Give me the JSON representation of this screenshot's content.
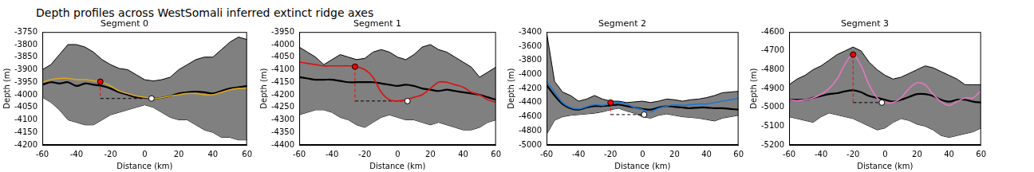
{
  "title": "Depth profiles across WestSomali inferred extinct ridge axes",
  "chart_data": [
    {
      "type": "line",
      "title": "Segment 0",
      "x_label": "Distance (km)",
      "y_label": "Depth (m)",
      "x": [
        -60,
        -55,
        -50,
        -45,
        -40,
        -35,
        -30,
        -25,
        -20,
        -15,
        -10,
        -5,
        0,
        5,
        10,
        15,
        20,
        25,
        30,
        35,
        40,
        45,
        50,
        55,
        60
      ],
      "xlim": [
        -60,
        60
      ],
      "xticks": [
        -60,
        -40,
        -20,
        0,
        20,
        40,
        60
      ],
      "ylim": [
        -4200,
        -3750
      ],
      "yticks": [
        -4200,
        -4150,
        -4100,
        -4050,
        -4000,
        -3950,
        -3900,
        -3850,
        -3800,
        -3750
      ],
      "grid": false,
      "series": [
        {
          "type": "band",
          "color": "#808080",
          "upper": [
            -3900,
            -3880,
            -3840,
            -3800,
            -3800,
            -3810,
            -3830,
            -3860,
            -3880,
            -3895,
            -3900,
            -3920,
            -3940,
            -3945,
            -3940,
            -3930,
            -3900,
            -3880,
            -3860,
            -3850,
            -3850,
            -3820,
            -3790,
            -3770,
            -3780
          ],
          "lower": [
            -4010,
            -4030,
            -4060,
            -4100,
            -4110,
            -4120,
            -4120,
            -4100,
            -4080,
            -4070,
            -4060,
            -4050,
            -4040,
            -4050,
            -4070,
            -4090,
            -4100,
            -4100,
            -4120,
            -4140,
            -4150,
            -4170,
            -4170,
            -4180,
            -4180
          ]
        },
        {
          "color": "#000000",
          "values": [
            -3960,
            -3950,
            -3955,
            -3950,
            -3965,
            -3955,
            -3960,
            -3965,
            -3975,
            -3990,
            -4000,
            -4010,
            -4012,
            -4015,
            -4012,
            -4005,
            -3995,
            -3990,
            -3988,
            -3990,
            -3995,
            -3985,
            -3975,
            -3970,
            -3965
          ]
        },
        {
          "color": "#daa520",
          "values": [
            -3950,
            -3940,
            -3935,
            -3935,
            -3940,
            -3940,
            -3945,
            -3950,
            -3965,
            -3985,
            -3995,
            -4005,
            -4010,
            -4015,
            -4012,
            -4005,
            -4000,
            -3995,
            -3995,
            -4000,
            -4000,
            -3990,
            -3980,
            -3975,
            -3975
          ]
        },
        {
          "color": "#ff0000",
          "line_style": "dashed",
          "x": [
            -26,
            -26
          ],
          "values": [
            -3948,
            -4015
          ]
        },
        {
          "color": "#000000",
          "line_style": "dashed",
          "x": [
            -26,
            4
          ],
          "values": [
            -4015,
            -4015
          ]
        },
        {
          "type": "scatter",
          "color": "#ff0000",
          "marker": "circle",
          "x": [
            -26
          ],
          "values": [
            -3948
          ]
        },
        {
          "type": "scatter",
          "color": "#ffffff",
          "marker": "circle",
          "x": [
            4
          ],
          "values": [
            -4015
          ]
        }
      ]
    },
    {
      "type": "line",
      "title": "Segment 1",
      "x_label": "Distance (km)",
      "y_label": "Depth (m)",
      "x": [
        -60,
        -55,
        -50,
        -45,
        -40,
        -35,
        -30,
        -25,
        -20,
        -15,
        -10,
        -5,
        0,
        5,
        10,
        15,
        20,
        25,
        30,
        35,
        40,
        45,
        50,
        55,
        60
      ],
      "xlim": [
        -60,
        60
      ],
      "xticks": [
        -60,
        -40,
        -20,
        0,
        20,
        40,
        60
      ],
      "ylim": [
        -4400,
        -3950
      ],
      "yticks": [
        -4400,
        -4350,
        -4300,
        -4250,
        -4200,
        -4150,
        -4100,
        -4050,
        -4000,
        -3950
      ],
      "grid": false,
      "series": [
        {
          "type": "band",
          "color": "#808080",
          "upper": [
            -4010,
            -4030,
            -4050,
            -4080,
            -4060,
            -4040,
            -4050,
            -4060,
            -4055,
            -4030,
            -4020,
            -4030,
            -4050,
            -4060,
            -4040,
            -4010,
            -4000,
            -4020,
            -4030,
            -4050,
            -4070,
            -4090,
            -4130,
            -4110,
            -4090
          ],
          "lower": [
            -4280,
            -4270,
            -4260,
            -4260,
            -4270,
            -4290,
            -4300,
            -4320,
            -4330,
            -4310,
            -4290,
            -4280,
            -4290,
            -4300,
            -4300,
            -4310,
            -4320,
            -4310,
            -4320,
            -4330,
            -4340,
            -4340,
            -4330,
            -4310,
            -4300
          ]
        },
        {
          "color": "#000000",
          "values": [
            -4130,
            -4135,
            -4140,
            -4140,
            -4140,
            -4145,
            -4150,
            -4150,
            -4150,
            -4150,
            -4155,
            -4160,
            -4165,
            -4160,
            -4165,
            -4175,
            -4180,
            -4185,
            -4180,
            -4185,
            -4190,
            -4195,
            -4200,
            -4210,
            -4220
          ]
        },
        {
          "color": "#dd1111",
          "values": [
            -4070,
            -4075,
            -4080,
            -4085,
            -4085,
            -4085,
            -4085,
            -4088,
            -4100,
            -4130,
            -4190,
            -4220,
            -4225,
            -4220,
            -4210,
            -4200,
            -4175,
            -4150,
            -4150,
            -4160,
            -4170,
            -4190,
            -4200,
            -4220,
            -4230
          ]
        },
        {
          "color": "#ff0000",
          "line_style": "dashed",
          "x": [
            -26,
            -26
          ],
          "values": [
            -4088,
            -4225
          ]
        },
        {
          "color": "#000000",
          "line_style": "dashed",
          "x": [
            -26,
            6
          ],
          "values": [
            -4225,
            -4225
          ]
        },
        {
          "type": "scatter",
          "color": "#ff0000",
          "marker": "circle",
          "x": [
            -26
          ],
          "values": [
            -4088
          ]
        },
        {
          "type": "scatter",
          "color": "#ffffff",
          "marker": "circle",
          "x": [
            6
          ],
          "values": [
            -4225
          ]
        }
      ]
    },
    {
      "type": "line",
      "title": "Segment 2",
      "x_label": "Distance (km)",
      "y_label": "Depth (m)",
      "x": [
        -60,
        -55,
        -50,
        -45,
        -40,
        -35,
        -30,
        -25,
        -20,
        -15,
        -10,
        -5,
        0,
        5,
        10,
        15,
        20,
        25,
        30,
        35,
        40,
        45,
        50,
        55,
        60
      ],
      "xlim": [
        -60,
        60
      ],
      "xticks": [
        -60,
        -40,
        -20,
        0,
        20,
        40,
        60
      ],
      "ylim": [
        -5000,
        -3400
      ],
      "yticks": [
        -5000,
        -4800,
        -4600,
        -4400,
        -4200,
        -4000,
        -3800,
        -3600,
        -3400
      ],
      "grid": false,
      "series": [
        {
          "type": "band",
          "color": "#808080",
          "upper": [
            -3400,
            -4100,
            -4250,
            -4300,
            -4380,
            -4350,
            -4300,
            -4350,
            -4380,
            -4380,
            -4400,
            -4390,
            -4380,
            -4400,
            -4380,
            -4350,
            -4360,
            -4380,
            -4360,
            -4350,
            -4330,
            -4300,
            -4260,
            -4250,
            -4240
          ],
          "lower": [
            -4850,
            -4650,
            -4600,
            -4580,
            -4570,
            -4560,
            -4550,
            -4530,
            -4500,
            -4480,
            -4520,
            -4550,
            -4600,
            -4620,
            -4580,
            -4560,
            -4580,
            -4600,
            -4610,
            -4620,
            -4640,
            -4660,
            -4620,
            -4600,
            -4580
          ]
        },
        {
          "color": "#000000",
          "values": [
            -4150,
            -4300,
            -4420,
            -4480,
            -4500,
            -4470,
            -4450,
            -4450,
            -4440,
            -4430,
            -4450,
            -4470,
            -4490,
            -4500,
            -4470,
            -4450,
            -4460,
            -4470,
            -4480,
            -4470,
            -4470,
            -4480,
            -4480,
            -4490,
            -4500
          ]
        },
        {
          "color": "#1f77d4",
          "values": [
            -4100,
            -4250,
            -4400,
            -4470,
            -4490,
            -4460,
            -4430,
            -4440,
            -4420,
            -4400,
            -4420,
            -4470,
            -4500,
            -4530,
            -4480,
            -4450,
            -4430,
            -4440,
            -4430,
            -4420,
            -4420,
            -4400,
            -4380,
            -4360,
            -4340
          ]
        },
        {
          "color": "#ff0000",
          "line_style": "dashed",
          "x": [
            -20,
            -20
          ],
          "values": [
            -4400,
            -4570
          ]
        },
        {
          "color": "#000000",
          "line_style": "dashed",
          "x": [
            -20,
            1
          ],
          "values": [
            -4570,
            -4570
          ]
        },
        {
          "type": "scatter",
          "color": "#ff0000",
          "marker": "circle",
          "x": [
            -20
          ],
          "values": [
            -4400
          ]
        },
        {
          "type": "scatter",
          "color": "#ffffff",
          "marker": "circle",
          "x": [
            1
          ],
          "values": [
            -4570
          ]
        }
      ]
    },
    {
      "type": "line",
      "title": "Segment 3",
      "x_label": "Distance (km)",
      "y_label": "Depth (m)",
      "x": [
        -60,
        -55,
        -50,
        -45,
        -40,
        -35,
        -30,
        -25,
        -20,
        -15,
        -10,
        -5,
        0,
        5,
        10,
        15,
        20,
        25,
        30,
        35,
        40,
        45,
        50,
        55,
        60
      ],
      "xlim": [
        -60,
        60
      ],
      "xticks": [
        -60,
        -40,
        -20,
        0,
        20,
        40,
        60
      ],
      "ylim": [
        -5200,
        -4600
      ],
      "yticks": [
        -5200,
        -5100,
        -5000,
        -4900,
        -4800,
        -4700,
        -4600
      ],
      "grid": false,
      "series": [
        {
          "type": "band",
          "color": "#808080",
          "upper": [
            -4880,
            -4850,
            -4830,
            -4800,
            -4780,
            -4750,
            -4720,
            -4700,
            -4680,
            -4700,
            -4760,
            -4800,
            -4830,
            -4850,
            -4840,
            -4820,
            -4800,
            -4780,
            -4790,
            -4810,
            -4830,
            -4850,
            -4880,
            -4880,
            -4880
          ],
          "lower": [
            -5050,
            -5060,
            -5070,
            -5080,
            -5050,
            -5030,
            -5040,
            -5050,
            -5060,
            -5080,
            -5100,
            -5120,
            -5110,
            -5080,
            -5060,
            -5070,
            -5090,
            -5100,
            -5120,
            -5150,
            -5160,
            -5150,
            -5140,
            -5130,
            -5110
          ]
        },
        {
          "color": "#000000",
          "values": [
            -4960,
            -4960,
            -4960,
            -4950,
            -4940,
            -4930,
            -4925,
            -4915,
            -4910,
            -4920,
            -4940,
            -4950,
            -4960,
            -4970,
            -4960,
            -4945,
            -4930,
            -4930,
            -4940,
            -4960,
            -4970,
            -4960,
            -4960,
            -4970,
            -4975
          ]
        },
        {
          "color": "#e377c2",
          "values": [
            -4960,
            -4965,
            -4960,
            -4950,
            -4930,
            -4900,
            -4850,
            -4770,
            -4720,
            -4780,
            -4880,
            -4950,
            -4975,
            -4975,
            -4950,
            -4900,
            -4870,
            -4880,
            -4930,
            -4970,
            -4990,
            -4970,
            -4950,
            -4950,
            -4910
          ]
        },
        {
          "color": "#ff0000",
          "line_style": "dashed",
          "x": [
            -20,
            -20
          ],
          "values": [
            -4720,
            -4975
          ]
        },
        {
          "color": "#000000",
          "line_style": "dashed",
          "x": [
            -20,
            -2
          ],
          "values": [
            -4975,
            -4975
          ]
        },
        {
          "type": "scatter",
          "color": "#ff0000",
          "marker": "circle",
          "x": [
            -20
          ],
          "values": [
            -4720
          ]
        },
        {
          "type": "scatter",
          "color": "#ffffff",
          "marker": "circle",
          "x": [
            -2
          ],
          "values": [
            -4975
          ]
        }
      ]
    }
  ]
}
